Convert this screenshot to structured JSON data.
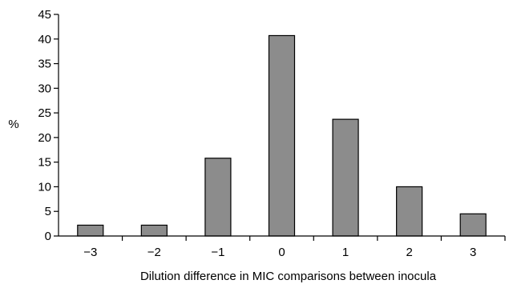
{
  "chart_data": {
    "type": "bar",
    "categories": [
      "−3",
      "−2",
      "−1",
      "0",
      "1",
      "2",
      "3"
    ],
    "values": [
      2.2,
      2.2,
      15.8,
      40.7,
      23.7,
      10.0,
      4.5
    ],
    "xlabel": "Dilution difference in MIC comparisons between inocula",
    "ylabel": "%",
    "ylim": [
      0,
      45
    ],
    "yticks": [
      0,
      5,
      10,
      15,
      20,
      25,
      30,
      35,
      40,
      45
    ],
    "grid": false,
    "colors": {
      "bar_fill": "#8c8c8c",
      "bar_stroke": "#000000",
      "axis": "#000000"
    }
  }
}
